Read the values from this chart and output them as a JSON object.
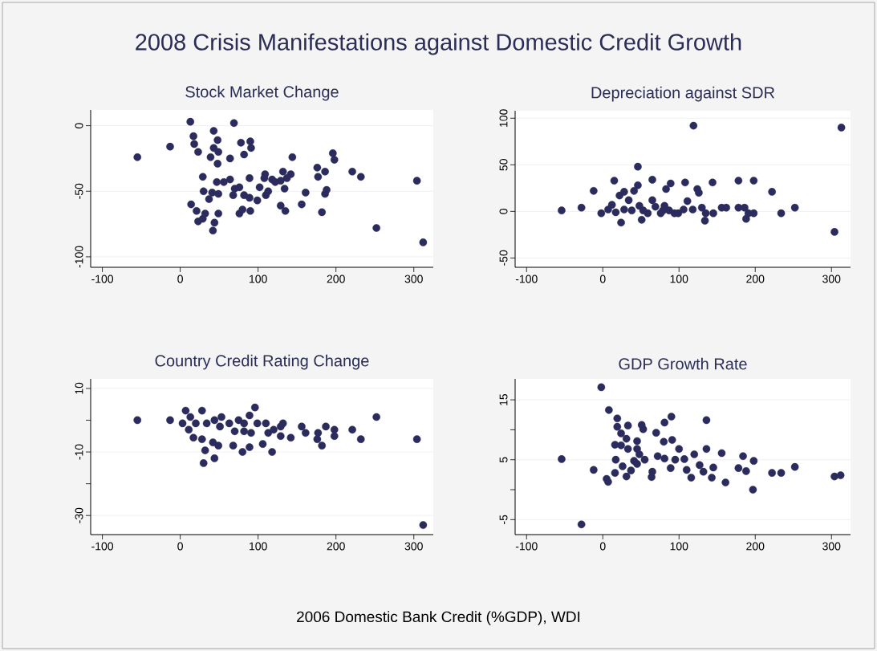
{
  "chart_data": [
    {
      "type": "scatter",
      "title": "2008 Crisis Manifestations against Domestic Credit Growth",
      "subtitle": "Stock Market Change",
      "color": "#2b2b5e",
      "marker": "circle",
      "grid": "y",
      "xlim": [
        -115,
        325
      ],
      "xticks": [
        -100,
        0,
        100,
        200,
        300
      ],
      "ylim": [
        -108,
        12
      ],
      "yticks": [
        0,
        -50,
        -100
      ],
      "x": [
        -55,
        -13,
        13,
        17,
        18,
        23,
        69,
        43,
        48,
        43,
        49,
        39,
        48,
        64,
        78,
        90,
        91,
        82,
        144,
        196,
        198,
        176,
        186,
        177,
        221,
        232,
        304,
        29,
        30,
        41,
        49,
        37,
        47,
        56,
        64,
        68,
        70,
        76,
        82,
        89,
        89,
        102,
        99,
        110,
        113,
        109,
        108,
        118,
        122,
        129,
        132,
        137,
        134,
        142,
        161,
        156,
        182,
        186,
        188,
        129,
        135,
        14,
        21,
        23,
        29,
        32,
        44,
        42,
        49,
        76,
        80,
        90,
        252,
        312
      ],
      "values": [
        -24,
        -16,
        3,
        -8,
        -14,
        -20,
        2,
        -4,
        -11,
        -17,
        -20,
        -24,
        -29,
        -25,
        -13,
        -12,
        -17,
        -22,
        -24,
        -21,
        -26,
        -32,
        -35,
        -39,
        -35,
        -39,
        -42,
        -39,
        -50,
        -51,
        -52,
        -56,
        -43,
        -43,
        -41,
        -53,
        -48,
        -47,
        -53,
        -55,
        -40,
        -47,
        -57,
        -53,
        -50,
        -37,
        -40,
        -41,
        -43,
        -42,
        -35,
        -40,
        -48,
        -37,
        -51,
        -60,
        -66,
        -52,
        -49,
        -61,
        -65,
        -60,
        -65,
        -73,
        -71,
        -67,
        -74,
        -80,
        -67,
        -67,
        -64,
        -65,
        -78,
        -89
      ]
    },
    {
      "type": "scatter",
      "title": "Depreciation against SDR",
      "color": "#2b2b5e",
      "marker": "circle",
      "grid": "y",
      "xlim": [
        -115,
        325
      ],
      "xticks": [
        -100,
        0,
        100,
        200,
        300
      ],
      "ylim": [
        -60,
        108
      ],
      "yticks": [
        100,
        50,
        0,
        -50
      ],
      "x": [
        119,
        313,
        46,
        15,
        65,
        89,
        108,
        144,
        178,
        198,
        -12,
        83,
        124,
        126,
        222,
        46,
        28,
        41,
        22,
        34,
        12,
        65,
        111,
        -54,
        -28,
        -2,
        7,
        17,
        28,
        38,
        48,
        53,
        59,
        69,
        76,
        81,
        87,
        94,
        99,
        106,
        118,
        130,
        135,
        134,
        145,
        156,
        162,
        178,
        186,
        191,
        198,
        188,
        234,
        252,
        304,
        24,
        51,
        79
      ],
      "values": [
        92,
        90,
        48,
        33,
        34,
        30,
        31,
        31,
        33,
        33,
        22,
        24,
        24,
        20,
        21,
        28,
        21,
        22,
        17,
        12,
        7,
        12,
        11,
        1,
        4,
        -2,
        2,
        -1,
        2,
        1,
        6,
        1,
        -2,
        5,
        -2,
        6,
        1,
        -2,
        -2,
        2,
        2,
        4,
        -2,
        -10,
        -2,
        4,
        4,
        4,
        4,
        -2,
        -2,
        -8,
        -2,
        4,
        -22,
        -12,
        -9,
        1
      ]
    },
    {
      "type": "scatter",
      "title": "Country Credit Rating Change",
      "xlabel": "2006 Domestic Bank Credit (%GDP), WDI",
      "color": "#2b2b5e",
      "marker": "circle",
      "grid": "y",
      "xlim": [
        -115,
        325
      ],
      "xticks": [
        -100,
        0,
        100,
        200,
        300
      ],
      "ylim": [
        -36,
        13
      ],
      "yticks": [
        10,
        {
          "value": 0,
          "label": null
        },
        -10,
        {
          "value": -20,
          "label": null
        },
        -30
      ],
      "x": [
        -55,
        -13,
        7,
        28,
        96,
        89,
        252,
        3,
        11,
        13,
        20,
        34,
        44,
        53,
        51,
        63,
        70,
        75,
        82,
        82,
        91,
        99,
        110,
        113,
        120,
        129,
        132,
        129,
        142,
        156,
        161,
        177,
        187,
        198,
        198,
        176,
        182,
        221,
        232,
        304,
        17,
        28,
        42,
        49,
        32,
        68,
        89,
        106,
        80,
        118,
        30,
        44,
        312
      ],
      "values": [
        0,
        0,
        3,
        3,
        4,
        1.5,
        1,
        -1,
        -3,
        1,
        -1,
        -1,
        0,
        1,
        -2,
        -1,
        -3.5,
        0,
        -1,
        -3.5,
        -4,
        -1,
        -1,
        -4,
        -3,
        -2,
        -1,
        -5,
        -5.5,
        -2,
        -4,
        -4,
        -2,
        -3,
        -5,
        -6,
        -8,
        -3,
        -6,
        -6,
        -5.5,
        -6,
        -7,
        -8,
        -9.5,
        -8,
        -8.5,
        -7.5,
        -10,
        -10,
        -13.5,
        -12,
        -33
      ]
    },
    {
      "type": "scatter",
      "title": "GDP Growth Rate",
      "color": "#2b2b5e",
      "marker": "circle",
      "grid": "y",
      "xlim": [
        -115,
        325
      ],
      "xticks": [
        -100,
        0,
        100,
        200,
        300
      ],
      "ylim": [
        -7.5,
        18.5
      ],
      "yticks": [
        15,
        {
          "value": 10,
          "label": null
        },
        5,
        {
          "value": 0,
          "label": null
        },
        -5
      ],
      "x": [
        -2,
        -28,
        -54,
        -12,
        8,
        19,
        19,
        24,
        33,
        31,
        16,
        24,
        33,
        45,
        45,
        48,
        41,
        45,
        55,
        53,
        51,
        70,
        81,
        90,
        136,
        80,
        91,
        100,
        72,
        81,
        89,
        95,
        107,
        120,
        136,
        156,
        184,
        198,
        17,
        16,
        26,
        31,
        37,
        5,
        7,
        65,
        64,
        110,
        116,
        127,
        132,
        143,
        145,
        161,
        178,
        188,
        197,
        222,
        234,
        252,
        304,
        312
      ],
      "values": [
        17.1,
        -5.8,
        5.1,
        3.3,
        13.3,
        11.9,
        10.5,
        9.4,
        10.7,
        8.5,
        7.5,
        7.4,
        6.8,
        8.1,
        6.8,
        5.9,
        4.8,
        4.3,
        5,
        10.1,
        10.8,
        9.5,
        11.2,
        12.2,
        11.6,
        8,
        8.3,
        6.8,
        5.6,
        5.2,
        3.6,
        5,
        5.1,
        5.9,
        6.8,
        6.1,
        5.6,
        4.8,
        5,
        2.8,
        3.9,
        2.2,
        3.2,
        1.8,
        1.3,
        3,
        2.1,
        3.3,
        2,
        4.1,
        3,
        2,
        3.7,
        1.2,
        3.6,
        3.1,
        0,
        2.8,
        2.8,
        3.8,
        2.2,
        2.4
      ]
    }
  ]
}
